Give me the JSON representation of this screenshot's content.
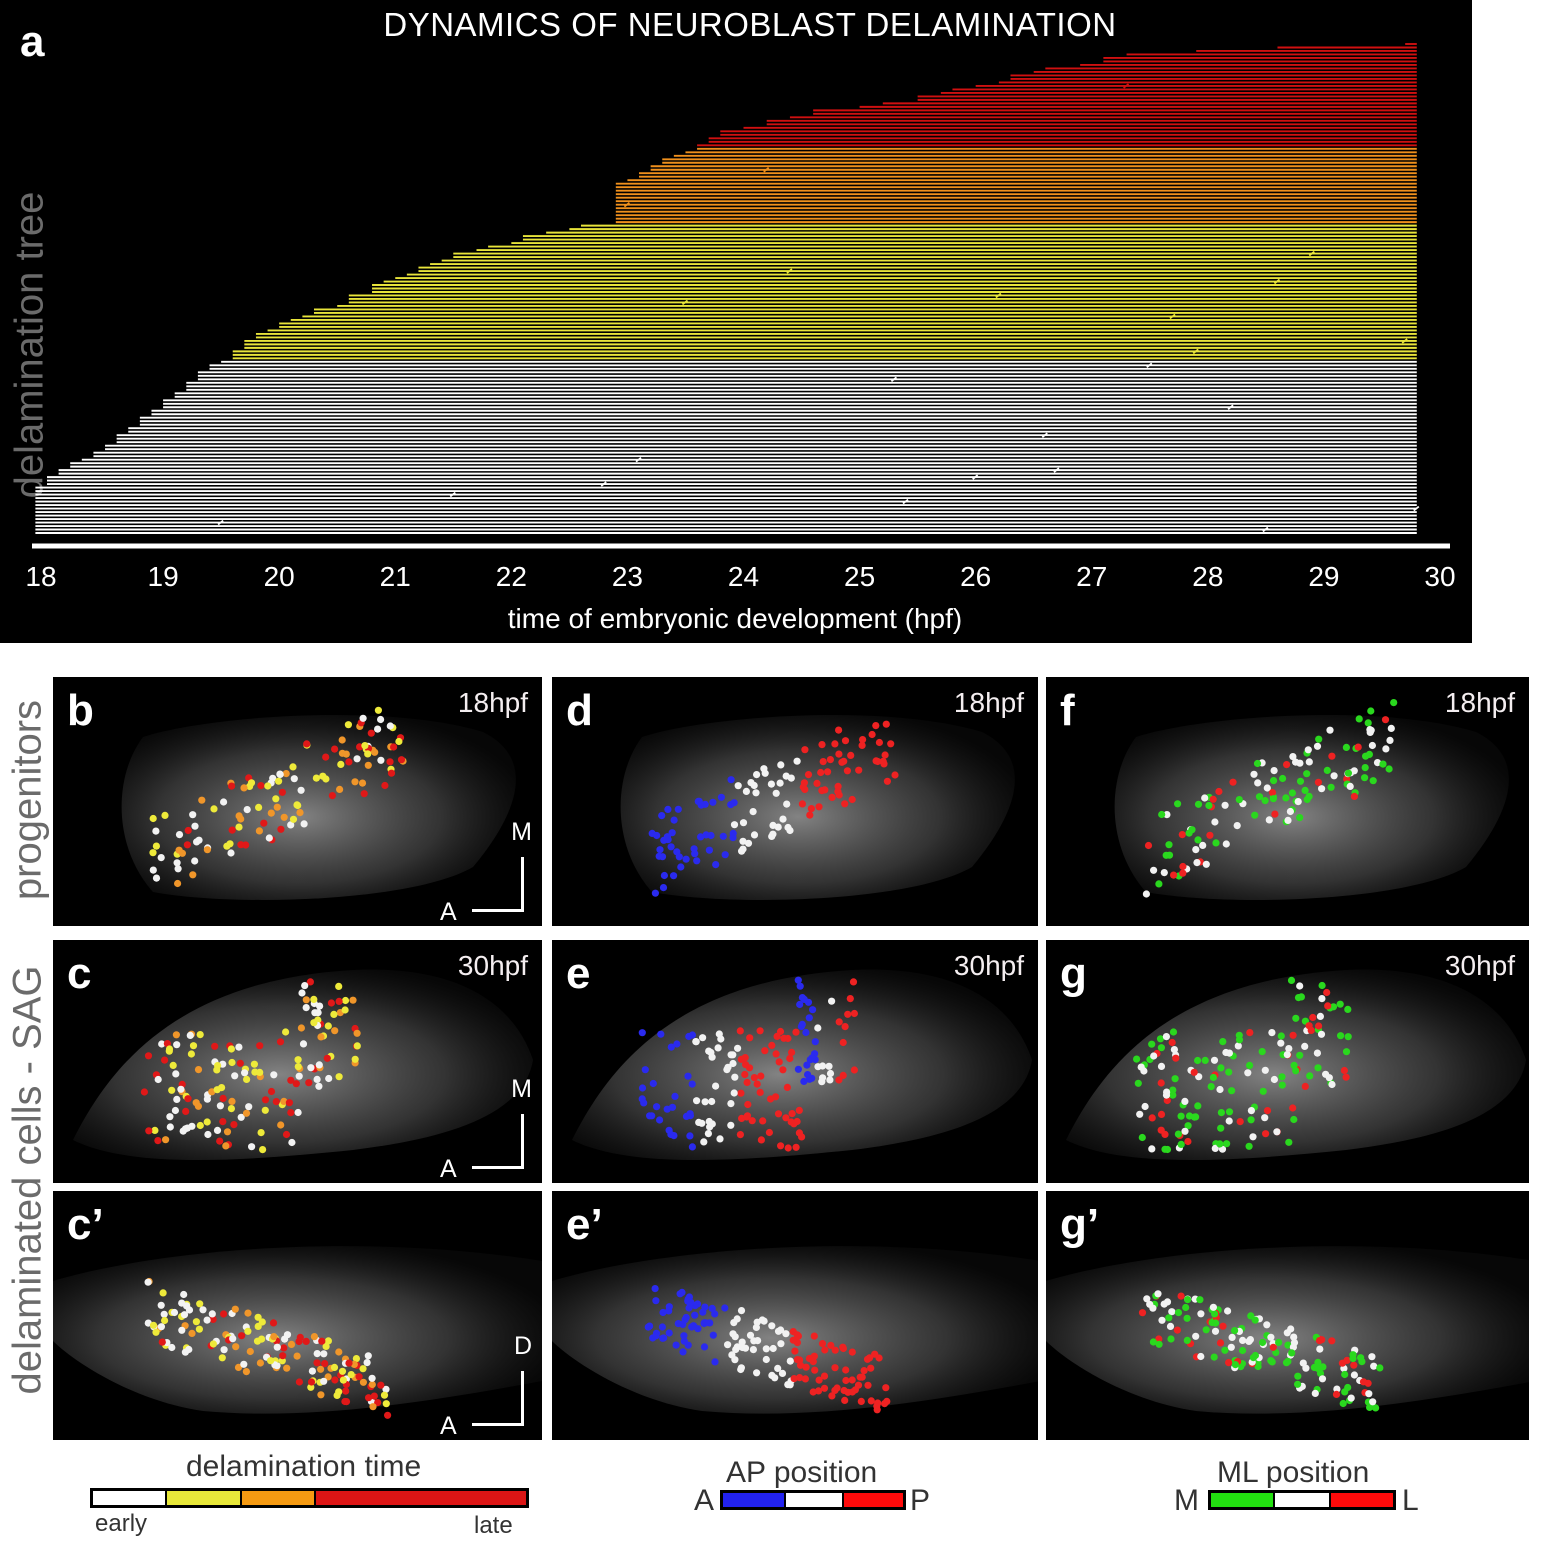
{
  "figure": {
    "row_labels": [
      "delamination tree",
      "progenitors",
      "delaminated cells - SAG"
    ]
  },
  "chart_data": {
    "type": "line",
    "title": "DYNAMICS OF NEUROBLAST DELAMINATION",
    "panel_letter": "a",
    "xlabel": "time of embryonic development (hpf)",
    "ylabel": "delamination tree",
    "xlim": [
      18,
      30
    ],
    "x_ticks": [
      "18",
      "19",
      "20",
      "21",
      "22",
      "23",
      "24",
      "25",
      "26",
      "27",
      "28",
      "29",
      "30"
    ],
    "grid": false,
    "end_time": 29.8,
    "color_classes": {
      "early": "#ffffff",
      "mid_early": "#e8e43a",
      "mid_late": "#f0901c",
      "late": "#d01010"
    },
    "series": [
      {
        "name": "late",
        "color": "#d01010",
        "start_times": [
          29.7,
          28.6,
          27.9,
          27.3,
          27.1,
          27.1,
          26.9,
          26.6,
          26.5,
          26.3,
          26.3,
          26.2,
          26.0,
          25.8,
          25.7,
          25.5,
          25.5,
          25.2,
          25.0,
          24.6,
          24.6,
          24.4,
          24.2,
          24.2,
          24.0,
          23.8,
          23.8,
          23.7,
          23.7,
          23.6
        ]
      },
      {
        "name": "mid_late",
        "color": "#f0901c",
        "start_times": [
          23.6,
          23.5,
          23.4,
          23.3,
          23.3,
          23.2,
          23.2,
          23.1,
          23.1,
          23.0,
          22.9,
          22.9,
          22.9,
          22.9,
          22.9,
          22.9,
          22.9,
          22.9,
          22.9,
          22.9,
          22.9,
          22.9
        ]
      },
      {
        "name": "mid_early",
        "color": "#e8e43a",
        "start_times": [
          22.6,
          22.5,
          22.3,
          22.1,
          22.1,
          22.0,
          21.8,
          21.7,
          21.5,
          21.5,
          21.4,
          21.3,
          21.2,
          21.2,
          21.1,
          21.0,
          20.9,
          20.8,
          20.8,
          20.8,
          20.6,
          20.6,
          20.6,
          20.5,
          20.3,
          20.3,
          20.2,
          20.1,
          20.0,
          20.0,
          19.9,
          19.8,
          19.8,
          19.7,
          19.7,
          19.7,
          19.6,
          19.6,
          19.6
        ]
      },
      {
        "name": "early",
        "color": "#ffffff",
        "start_times": [
          19.5,
          19.4,
          19.4,
          19.3,
          19.3,
          19.3,
          19.2,
          19.2,
          19.2,
          19.1,
          19.1,
          19.0,
          19.0,
          19.0,
          18.9,
          18.9,
          18.8,
          18.8,
          18.8,
          18.7,
          18.7,
          18.6,
          18.6,
          18.6,
          18.5,
          18.5,
          18.4,
          18.4,
          18.3,
          18.2,
          18.2,
          18.1,
          18.1,
          18.0,
          18.0,
          18.0,
          17.9,
          17.9,
          17.9,
          17.9,
          17.9,
          17.9,
          17.9,
          17.9,
          17.9,
          17.9,
          17.9,
          17.9,
          17.9,
          17.9
        ]
      }
    ],
    "branch_points": [
      {
        "row": 12,
        "x": 27.3
      },
      {
        "row": 36,
        "x": 24.2
      },
      {
        "row": 46,
        "x": 23.0
      },
      {
        "row": 60,
        "x": 28.9
      },
      {
        "row": 65,
        "x": 24.4
      },
      {
        "row": 68,
        "x": 28.6
      },
      {
        "row": 72,
        "x": 26.2
      },
      {
        "row": 74,
        "x": 23.5
      },
      {
        "row": 78,
        "x": 27.7
      },
      {
        "row": 85,
        "x": 29.7
      },
      {
        "row": 88,
        "x": 27.9
      },
      {
        "row": 92,
        "x": 27.5
      },
      {
        "row": 96,
        "x": 25.3
      },
      {
        "row": 104,
        "x": 28.2
      },
      {
        "row": 112,
        "x": 26.6
      },
      {
        "row": 119,
        "x": 23.1
      },
      {
        "row": 122,
        "x": 26.7
      },
      {
        "row": 124,
        "x": 26.0
      },
      {
        "row": 126,
        "x": 22.8
      },
      {
        "row": 129,
        "x": 21.5
      },
      {
        "row": 131,
        "x": 25.4
      },
      {
        "row": 133,
        "x": 29.8
      },
      {
        "row": 137,
        "x": 19.5
      },
      {
        "row": 139,
        "x": 28.5
      },
      {
        "row": 141,
        "x": 27.9
      },
      {
        "row": 147,
        "x": 26.4
      },
      {
        "row": 151,
        "x": 20.4
      },
      {
        "row": 155,
        "x": 18.4
      },
      {
        "row": 145,
        "x": 25.8
      },
      {
        "row": 149,
        "x": 21.9
      }
    ]
  },
  "panels": [
    {
      "id": "b",
      "letter": "b",
      "time": "18hpf",
      "axis": {
        "v": "M",
        "h": "A"
      },
      "scheme": "delamination",
      "view": "dorsal18"
    },
    {
      "id": "d",
      "letter": "d",
      "time": "18hpf",
      "axis": null,
      "scheme": "ap",
      "view": "dorsal18"
    },
    {
      "id": "f",
      "letter": "f",
      "time": "18hpf",
      "axis": null,
      "scheme": "ml",
      "view": "dorsal18"
    },
    {
      "id": "c",
      "letter": "c",
      "time": "30hpf",
      "axis": {
        "v": "M",
        "h": "A"
      },
      "scheme": "delamination",
      "view": "dorsal30"
    },
    {
      "id": "e",
      "letter": "e",
      "time": "30hpf",
      "axis": null,
      "scheme": "ap",
      "view": "dorsal30"
    },
    {
      "id": "g",
      "letter": "g",
      "time": "30hpf",
      "axis": null,
      "scheme": "ml",
      "view": "dorsal30"
    },
    {
      "id": "c2",
      "letter": "c’",
      "time": "",
      "axis": {
        "v": "D",
        "h": "A"
      },
      "scheme": "delamination",
      "view": "lateral"
    },
    {
      "id": "e2",
      "letter": "e’",
      "time": "",
      "axis": null,
      "scheme": "ap",
      "view": "lateral"
    },
    {
      "id": "g2",
      "letter": "g’",
      "time": "",
      "axis": null,
      "scheme": "ml",
      "view": "lateral"
    }
  ],
  "legends": {
    "delamination": {
      "title": "delamination time",
      "colors": [
        "#ffffff",
        "#e8e83a",
        "#f59a12",
        "#dc1515"
      ],
      "start_label": "early",
      "end_label": "late"
    },
    "ap": {
      "title": "AP position",
      "colors": [
        "#2222f0",
        "#ffffff",
        "#ff0a0a"
      ],
      "start_label": "A",
      "end_label": "P"
    },
    "ml": {
      "title": "ML position",
      "colors": [
        "#22e010",
        "#ffffff",
        "#ff0a0a"
      ],
      "start_label": "M",
      "end_label": "L"
    }
  },
  "dot_colors": {
    "delamination": [
      "#f2f2f2",
      "#eeea3a",
      "#f0962a",
      "#e01818"
    ],
    "ap": [
      "#2a2aee",
      "#f2f2f2",
      "#ee2222"
    ],
    "ml": [
      "#2ad81e",
      "#f2f2f2",
      "#ee2222"
    ]
  }
}
